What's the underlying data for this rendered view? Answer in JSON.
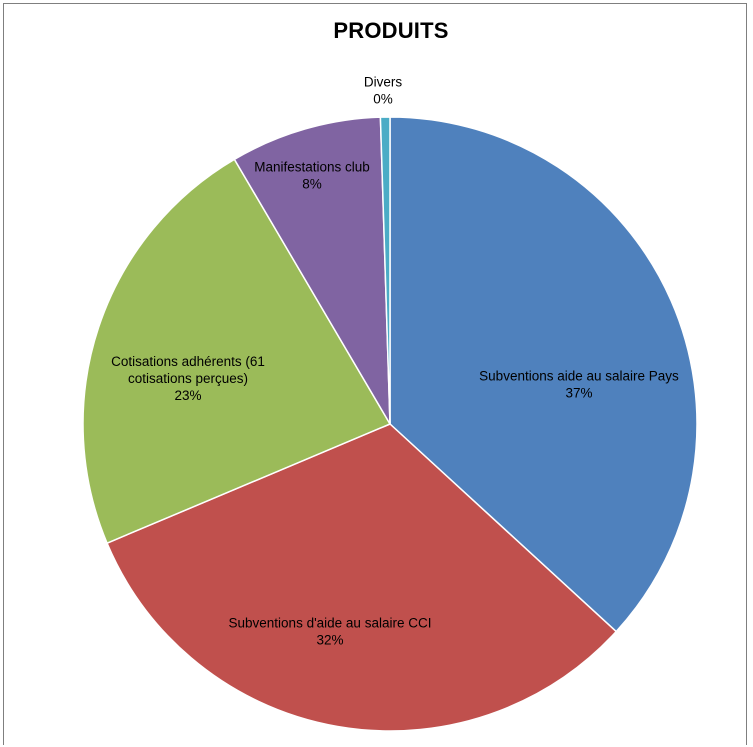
{
  "chart_data": {
    "type": "pie",
    "title": "PRODUITS",
    "start_angle_deg": 0,
    "direction": "clockwise",
    "slices": [
      {
        "name": "Subventions aide au salaire Pays",
        "value": 37,
        "label_lines": [
          "Subventions aide au salaire Pays",
          "37%"
        ],
        "color": "#4F81BD"
      },
      {
        "name": "Subventions d'aide au salaire CCI",
        "value": 32,
        "label_lines": [
          "Subventions d'aide au salaire CCI",
          "32%"
        ],
        "color": "#C0504D"
      },
      {
        "name": "Cotisations adhérents (61 cotisations perçues)",
        "value": 23,
        "label_lines": [
          "Cotisations adhérents (61",
          "cotisations perçues)",
          "23%"
        ],
        "color": "#9BBB59"
      },
      {
        "name": "Manifestations club",
        "value": 8,
        "label_lines": [
          "Manifestations club",
          "8%"
        ],
        "color": "#8064A2"
      },
      {
        "name": "Divers",
        "value": 0.5,
        "label_lines": [
          "Divers",
          "0%"
        ],
        "color": "#4BACC6"
      }
    ],
    "legend": "none",
    "data_labels": "category name and percentage"
  }
}
